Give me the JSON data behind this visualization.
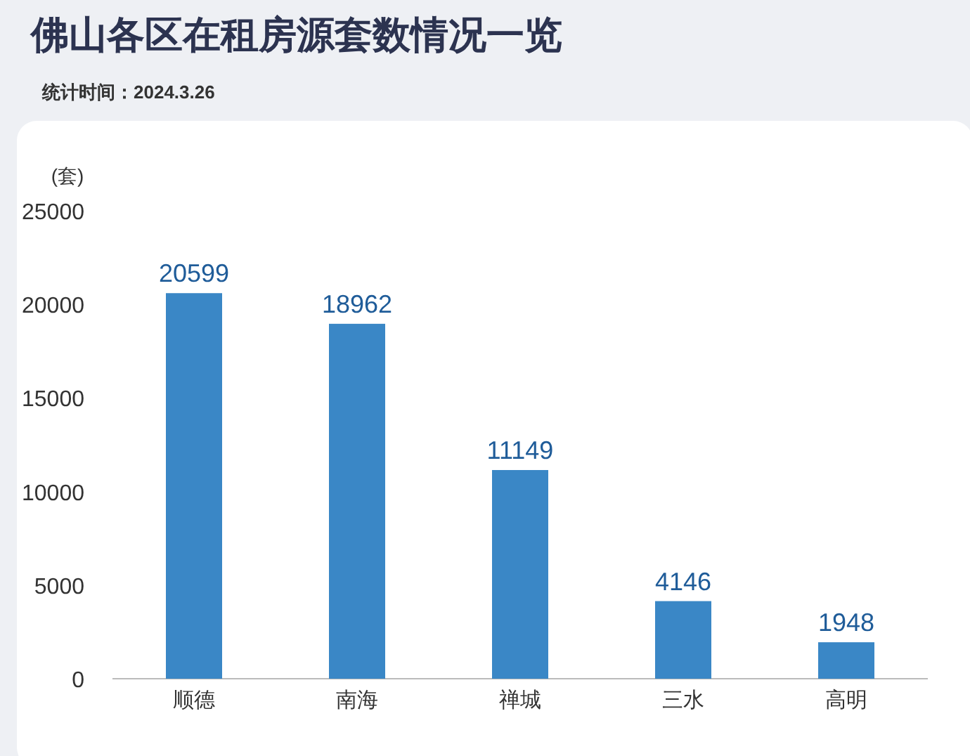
{
  "chart_data": {
    "type": "bar",
    "title": "佛山各区在租房源套数情况一览",
    "annotations": [
      "统计时间：2024.3.26"
    ],
    "ylabel": "(套)",
    "categories": [
      "顺德",
      "南海",
      "禅城",
      "三水",
      "高明"
    ],
    "values": [
      20599,
      18962,
      11149,
      4146,
      1948
    ],
    "color": "#3a87c6",
    "ylim": [
      0,
      25000
    ],
    "yticks": [
      0,
      5000,
      10000,
      15000,
      20000,
      25000
    ],
    "data_labels": true
  }
}
